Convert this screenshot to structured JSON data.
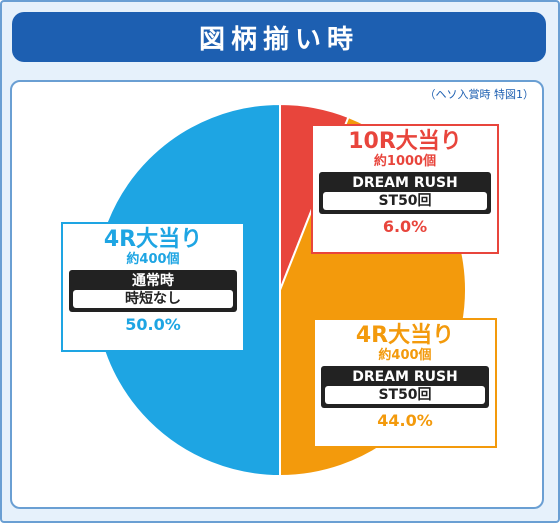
{
  "header": {
    "title": "図柄揃い時"
  },
  "note": "（ヘソ入賞時 特図1）",
  "colors": {
    "red": "#e8453c",
    "orange": "#f39a0c",
    "blue": "#1ea5e3",
    "dark": "#222222"
  },
  "chart_data": {
    "type": "pie",
    "slices": [
      {
        "label": "10R大当り",
        "count": "約1000個",
        "mode": "DREAM RUSH",
        "detail": "ST50回",
        "value": 6.0,
        "percent_label": "6.0%",
        "color": "#e8453c"
      },
      {
        "label": "4R大当り",
        "count": "約400個",
        "mode": "DREAM RUSH",
        "detail": "ST50回",
        "value": 44.0,
        "percent_label": "44.0%",
        "color": "#f39a0c"
      },
      {
        "label": "4R大当り",
        "count": "約400個",
        "mode": "通常時",
        "detail": "時短なし",
        "value": 50.0,
        "percent_label": "50.0%",
        "color": "#1ea5e3"
      }
    ]
  }
}
